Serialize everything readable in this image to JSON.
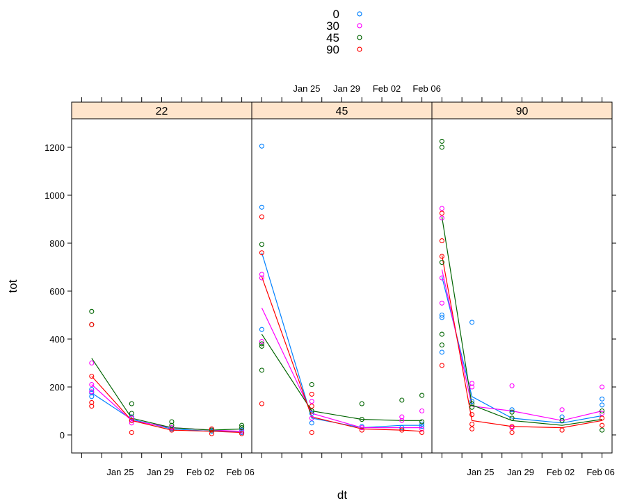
{
  "chart_data": {
    "type": "scatter",
    "xlabel": "dt",
    "ylabel": "tot",
    "x_ticks": [
      "Jan 25",
      "Jan 29",
      "Feb 02",
      "Feb 06"
    ],
    "y_ticks": [
      0,
      200,
      400,
      600,
      800,
      1000,
      1200
    ],
    "ylim": [
      -80,
      1310
    ],
    "xlim": [
      "2014-01-20",
      "2014-02-07"
    ],
    "legend": {
      "placement": "top",
      "entries": [
        {
          "label": "0",
          "color": "#0080ff"
        },
        {
          "label": "30",
          "color": "#ff00ff"
        },
        {
          "label": "45",
          "color": "#006400"
        },
        {
          "label": "90",
          "color": "#ff0000"
        }
      ]
    },
    "strip_color": "#ffe5cc",
    "panels": [
      {
        "strip": "22",
        "points": {
          "0": [
            [
              "2014-01-22",
              160
            ],
            [
              "2014-01-22",
              175
            ],
            [
              "2014-01-22",
              190
            ],
            [
              "2014-01-26",
              60
            ],
            [
              "2014-01-26",
              75
            ],
            [
              "2014-01-30",
              25
            ],
            [
              "2014-02-03",
              15
            ],
            [
              "2014-02-06",
              10
            ],
            [
              "2014-02-06",
              20
            ]
          ],
          "30": [
            [
              "2014-01-22",
              210
            ],
            [
              "2014-01-22",
              300
            ],
            [
              "2014-01-22",
              180
            ],
            [
              "2014-01-26",
              70
            ],
            [
              "2014-01-26",
              50
            ],
            [
              "2014-01-30",
              30
            ],
            [
              "2014-02-03",
              20
            ],
            [
              "2014-02-06",
              15
            ]
          ],
          "45": [
            [
              "2014-01-22",
              515
            ],
            [
              "2014-01-22",
              460
            ],
            [
              "2014-01-26",
              130
            ],
            [
              "2014-01-26",
              90
            ],
            [
              "2014-01-30",
              55
            ],
            [
              "2014-01-30",
              40
            ],
            [
              "2014-02-03",
              20
            ],
            [
              "2014-02-06",
              40
            ],
            [
              "2014-02-06",
              30
            ]
          ],
          "90": [
            [
              "2014-01-22",
              460
            ],
            [
              "2014-01-22",
              245
            ],
            [
              "2014-01-22",
              135
            ],
            [
              "2014-01-22",
              120
            ],
            [
              "2014-01-26",
              10
            ],
            [
              "2014-01-26",
              60
            ],
            [
              "2014-01-30",
              20
            ],
            [
              "2014-02-03",
              5
            ],
            [
              "2014-02-03",
              25
            ],
            [
              "2014-02-06",
              5
            ]
          ]
        },
        "lines": {
          "0": [
            [
              "2014-01-22",
              175
            ],
            [
              "2014-01-26",
              65
            ],
            [
              "2014-01-30",
              25
            ],
            [
              "2014-02-03",
              15
            ],
            [
              "2014-02-06",
              15
            ]
          ],
          "30": [
            [
              "2014-01-22",
              210
            ],
            [
              "2014-01-26",
              60
            ],
            [
              "2014-01-30",
              30
            ],
            [
              "2014-02-03",
              20
            ],
            [
              "2014-02-06",
              15
            ]
          ],
          "45": [
            [
              "2014-01-22",
              320
            ],
            [
              "2014-01-26",
              70
            ],
            [
              "2014-01-30",
              30
            ],
            [
              "2014-02-03",
              20
            ],
            [
              "2014-02-06",
              25
            ]
          ],
          "90": [
            [
              "2014-01-22",
              245
            ],
            [
              "2014-01-26",
              60
            ],
            [
              "2014-01-30",
              20
            ],
            [
              "2014-02-03",
              15
            ],
            [
              "2014-02-06",
              10
            ]
          ]
        }
      },
      {
        "strip": "45",
        "points": {
          "0": [
            [
              "2014-01-21",
              1205
            ],
            [
              "2014-01-21",
              950
            ],
            [
              "2014-01-21",
              440
            ],
            [
              "2014-01-26",
              90
            ],
            [
              "2014-01-26",
              50
            ],
            [
              "2014-01-31",
              35
            ],
            [
              "2014-02-04",
              30
            ],
            [
              "2014-02-06",
              35
            ],
            [
              "2014-02-06",
              45
            ]
          ],
          "30": [
            [
              "2014-01-21",
              670
            ],
            [
              "2014-01-21",
              655
            ],
            [
              "2014-01-21",
              390
            ],
            [
              "2014-01-26",
              140
            ],
            [
              "2014-01-26",
              70
            ],
            [
              "2014-01-31",
              30
            ],
            [
              "2014-02-04",
              75
            ],
            [
              "2014-02-04",
              60
            ],
            [
              "2014-02-06",
              100
            ],
            [
              "2014-02-06",
              25
            ]
          ],
          "45": [
            [
              "2014-01-21",
              795
            ],
            [
              "2014-01-21",
              380
            ],
            [
              "2014-01-21",
              370
            ],
            [
              "2014-01-21",
              270
            ],
            [
              "2014-01-26",
              210
            ],
            [
              "2014-01-26",
              100
            ],
            [
              "2014-01-31",
              130
            ],
            [
              "2014-01-31",
              65
            ],
            [
              "2014-02-04",
              145
            ],
            [
              "2014-02-06",
              165
            ],
            [
              "2014-02-06",
              55
            ]
          ],
          "90": [
            [
              "2014-01-21",
              910
            ],
            [
              "2014-01-21",
              760
            ],
            [
              "2014-01-21",
              130
            ],
            [
              "2014-01-26",
              170
            ],
            [
              "2014-01-26",
              120
            ],
            [
              "2014-01-26",
              10
            ],
            [
              "2014-01-31",
              20
            ],
            [
              "2014-02-04",
              20
            ],
            [
              "2014-02-06",
              10
            ]
          ]
        },
        "lines": {
          "0": [
            [
              "2014-01-21",
              760
            ],
            [
              "2014-01-26",
              70
            ],
            [
              "2014-01-31",
              30
            ],
            [
              "2014-02-04",
              40
            ],
            [
              "2014-02-06",
              40
            ]
          ],
          "30": [
            [
              "2014-01-21",
              530
            ],
            [
              "2014-01-26",
              90
            ],
            [
              "2014-01-31",
              30
            ],
            [
              "2014-02-04",
              30
            ],
            [
              "2014-02-06",
              30
            ]
          ],
          "45": [
            [
              "2014-01-21",
              420
            ],
            [
              "2014-01-26",
              100
            ],
            [
              "2014-01-31",
              65
            ],
            [
              "2014-02-04",
              60
            ],
            [
              "2014-02-06",
              60
            ]
          ],
          "90": [
            [
              "2014-01-21",
              660
            ],
            [
              "2014-01-26",
              75
            ],
            [
              "2014-01-31",
              25
            ],
            [
              "2014-02-04",
              20
            ],
            [
              "2014-02-06",
              15
            ]
          ]
        }
      },
      {
        "strip": "90",
        "points": {
          "0": [
            [
              "2014-01-21",
              500
            ],
            [
              "2014-01-21",
              490
            ],
            [
              "2014-01-21",
              345
            ],
            [
              "2014-01-24",
              470
            ],
            [
              "2014-01-24",
              140
            ],
            [
              "2014-01-28",
              105
            ],
            [
              "2014-02-02",
              75
            ],
            [
              "2014-02-06",
              150
            ],
            [
              "2014-02-06",
              125
            ]
          ],
          "30": [
            [
              "2014-01-21",
              945
            ],
            [
              "2014-01-21",
              905
            ],
            [
              "2014-01-21",
              655
            ],
            [
              "2014-01-21",
              550
            ],
            [
              "2014-01-24",
              215
            ],
            [
              "2014-01-24",
              200
            ],
            [
              "2014-01-28",
              205
            ],
            [
              "2014-01-28",
              30
            ],
            [
              "2014-02-02",
              105
            ],
            [
              "2014-02-06",
              200
            ],
            [
              "2014-02-06",
              90
            ]
          ],
          "45": [
            [
              "2014-01-21",
              1225
            ],
            [
              "2014-01-21",
              1200
            ],
            [
              "2014-01-21",
              720
            ],
            [
              "2014-01-21",
              420
            ],
            [
              "2014-01-21",
              375
            ],
            [
              "2014-01-24",
              130
            ],
            [
              "2014-01-24",
              115
            ],
            [
              "2014-01-28",
              95
            ],
            [
              "2014-01-28",
              70
            ],
            [
              "2014-02-02",
              60
            ],
            [
              "2014-02-06",
              100
            ],
            [
              "2014-02-06",
              20
            ]
          ],
          "90": [
            [
              "2014-01-21",
              925
            ],
            [
              "2014-01-21",
              810
            ],
            [
              "2014-01-21",
              745
            ],
            [
              "2014-01-21",
              290
            ],
            [
              "2014-01-24",
              85
            ],
            [
              "2014-01-24",
              45
            ],
            [
              "2014-01-24",
              25
            ],
            [
              "2014-01-28",
              35
            ],
            [
              "2014-01-28",
              10
            ],
            [
              "2014-02-02",
              20
            ],
            [
              "2014-02-06",
              70
            ],
            [
              "2014-02-06",
              40
            ]
          ]
        },
        "lines": {
          "0": [
            [
              "2014-01-21",
              660
            ],
            [
              "2014-01-24",
              160
            ],
            [
              "2014-01-28",
              70
            ],
            [
              "2014-02-02",
              50
            ],
            [
              "2014-02-06",
              80
            ]
          ],
          "30": [
            [
              "2014-01-21",
              690
            ],
            [
              "2014-01-24",
              120
            ],
            [
              "2014-01-28",
              100
            ],
            [
              "2014-02-02",
              60
            ],
            [
              "2014-02-06",
              100
            ]
          ],
          "45": [
            [
              "2014-01-21",
              910
            ],
            [
              "2014-01-24",
              125
            ],
            [
              "2014-01-28",
              60
            ],
            [
              "2014-02-02",
              40
            ],
            [
              "2014-02-06",
              65
            ]
          ],
          "90": [
            [
              "2014-01-21",
              750
            ],
            [
              "2014-01-24",
              60
            ],
            [
              "2014-01-28",
              35
            ],
            [
              "2014-02-02",
              30
            ],
            [
              "2014-02-06",
              60
            ]
          ]
        }
      }
    ]
  }
}
